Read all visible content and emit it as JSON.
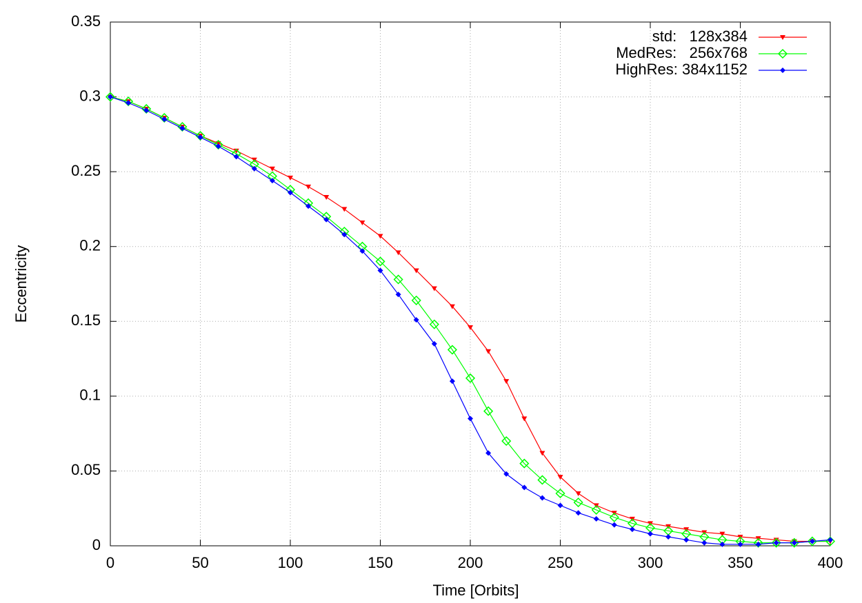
{
  "chart_data": {
    "type": "line",
    "xlabel": "Time [Orbits]",
    "ylabel": "Eccentricity",
    "x": [
      0,
      10,
      20,
      30,
      40,
      50,
      60,
      70,
      80,
      90,
      100,
      110,
      120,
      130,
      140,
      150,
      160,
      170,
      180,
      190,
      200,
      210,
      220,
      230,
      240,
      250,
      260,
      270,
      280,
      290,
      300,
      310,
      320,
      330,
      340,
      350,
      360,
      370,
      380,
      390,
      400
    ],
    "series": [
      {
        "name": "std:   128x384",
        "color": "#ff0000",
        "marker": "triangle-down",
        "values": [
          0.3,
          0.297,
          0.292,
          0.286,
          0.28,
          0.274,
          0.269,
          0.264,
          0.258,
          0.252,
          0.246,
          0.24,
          0.233,
          0.225,
          0.216,
          0.207,
          0.196,
          0.184,
          0.172,
          0.16,
          0.146,
          0.13,
          0.11,
          0.085,
          0.062,
          0.046,
          0.035,
          0.027,
          0.022,
          0.018,
          0.015,
          0.013,
          0.011,
          0.009,
          0.008,
          0.006,
          0.005,
          0.004,
          0.003,
          0.003,
          0.003
        ]
      },
      {
        "name": "MedRes:   256x768",
        "color": "#00ff00",
        "marker": "diamond-open",
        "values": [
          0.3,
          0.297,
          0.292,
          0.286,
          0.28,
          0.274,
          0.268,
          0.262,
          0.255,
          0.247,
          0.238,
          0.229,
          0.22,
          0.21,
          0.2,
          0.19,
          0.178,
          0.164,
          0.148,
          0.131,
          0.112,
          0.09,
          0.07,
          0.055,
          0.044,
          0.035,
          0.029,
          0.024,
          0.019,
          0.015,
          0.012,
          0.01,
          0.008,
          0.006,
          0.004,
          0.003,
          0.002,
          0.002,
          0.002,
          0.003,
          0.003
        ]
      },
      {
        "name": "HighRes: 384x1152",
        "color": "#0000ff",
        "marker": "diamond-filled",
        "values": [
          0.3,
          0.296,
          0.291,
          0.285,
          0.279,
          0.273,
          0.267,
          0.26,
          0.252,
          0.244,
          0.236,
          0.227,
          0.218,
          0.208,
          0.197,
          0.184,
          0.168,
          0.151,
          0.135,
          0.11,
          0.085,
          0.062,
          0.048,
          0.039,
          0.032,
          0.027,
          0.022,
          0.018,
          0.014,
          0.011,
          0.008,
          0.006,
          0.004,
          0.002,
          0.001,
          0.001,
          0.001,
          0.002,
          0.002,
          0.003,
          0.004
        ]
      }
    ],
    "xlim": [
      0,
      400
    ],
    "xticks": [
      0,
      50,
      100,
      150,
      200,
      250,
      300,
      350,
      400
    ],
    "ylim": [
      0,
      0.35
    ],
    "yticks": [
      0,
      0.05,
      0.1,
      0.15,
      0.2,
      0.25,
      0.3,
      0.35
    ],
    "grid": true,
    "legend": "top-right"
  }
}
